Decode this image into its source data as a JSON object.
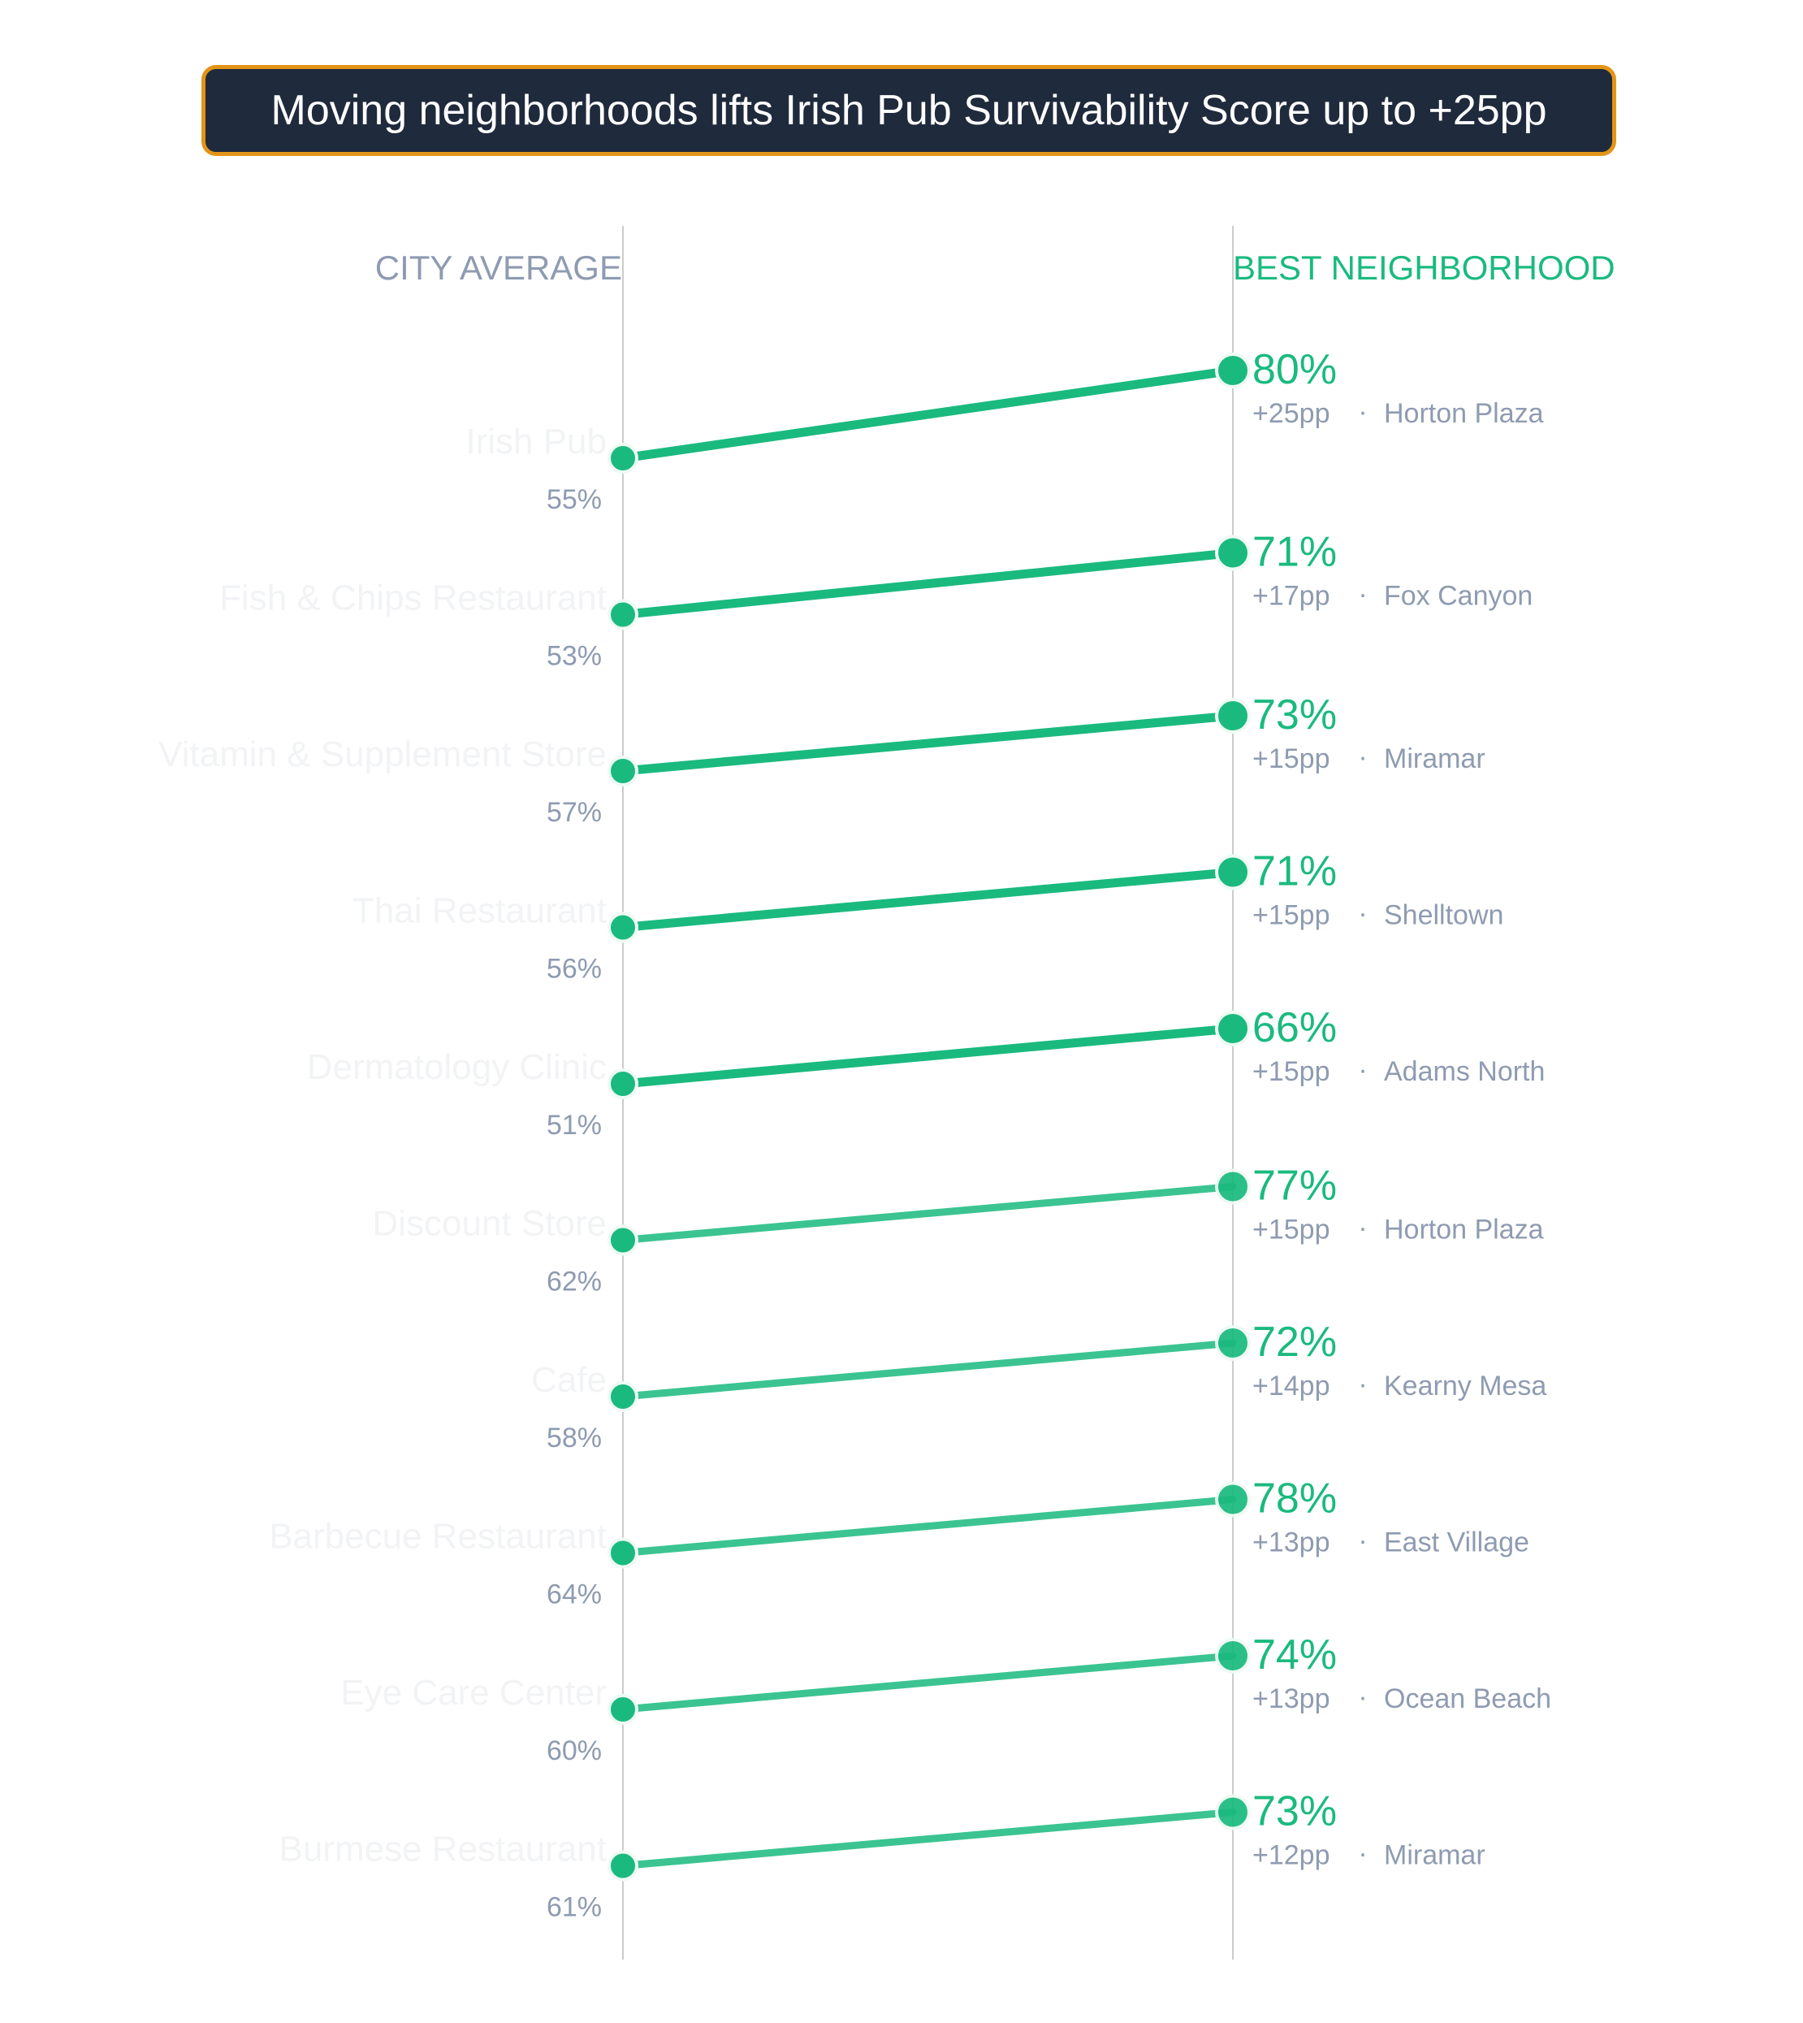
{
  "title": "Moving neighborhoods lifts Irish Pub Survivability Score up to +25pp",
  "colors": {
    "accent": "#1aba7e",
    "muted": "#8e9bb1",
    "axis": "#cccccc",
    "title_bg": "#1f2a3c",
    "title_border": "#e39417"
  },
  "chart_data": {
    "type": "line",
    "left_header": "CITY AVERAGE",
    "right_header": "BEST NEIGHBORHOOD",
    "ylim": [
      45,
      85
    ],
    "rows": [
      {
        "category": "Irish Pub",
        "city_average": 55,
        "best": 80,
        "lift": "+25pp",
        "neighborhood": "Horton Plaza"
      },
      {
        "category": "Fish & Chips Restaurant",
        "city_average": 53,
        "best": 71,
        "lift": "+17pp",
        "neighborhood": "Fox Canyon"
      },
      {
        "category": "Vitamin & Supplement Store",
        "city_average": 57,
        "best": 73,
        "lift": "+15pp",
        "neighborhood": "Miramar"
      },
      {
        "category": "Thai Restaurant",
        "city_average": 56,
        "best": 71,
        "lift": "+15pp",
        "neighborhood": "Shelltown"
      },
      {
        "category": "Dermatology Clinic",
        "city_average": 51,
        "best": 66,
        "lift": "+15pp",
        "neighborhood": "Adams North"
      },
      {
        "category": "Discount Store",
        "city_average": 62,
        "best": 77,
        "lift": "+15pp",
        "neighborhood": "Horton Plaza"
      },
      {
        "category": "Cafe",
        "city_average": 58,
        "best": 72,
        "lift": "+14pp",
        "neighborhood": "Kearny Mesa"
      },
      {
        "category": "Barbecue Restaurant",
        "city_average": 64,
        "best": 78,
        "lift": "+13pp",
        "neighborhood": "East Village"
      },
      {
        "category": "Eye Care Center",
        "city_average": 60,
        "best": 74,
        "lift": "+13pp",
        "neighborhood": "Ocean Beach"
      },
      {
        "category": "Burmese Restaurant",
        "city_average": 61,
        "best": 73,
        "lift": "+12pp",
        "neighborhood": "Miramar"
      }
    ]
  }
}
